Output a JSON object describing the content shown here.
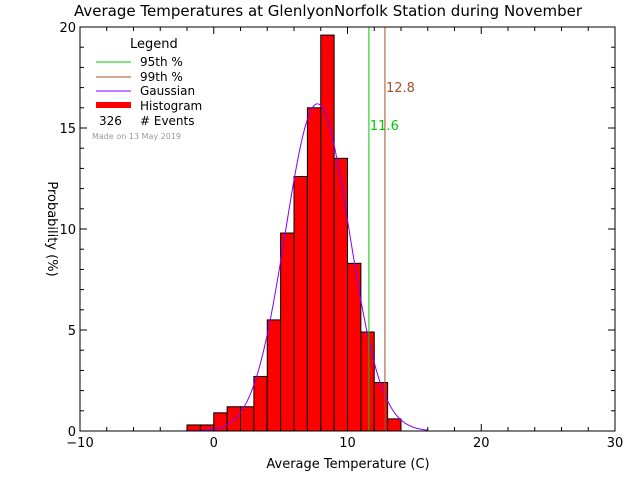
{
  "chart_data": {
    "type": "bar",
    "title": "Average Temperatures at GlenlyonNorfolk Station during November",
    "xlabel": "Average Temperature (C)",
    "ylabel": "Probability (%)",
    "xlim": [
      -10,
      30
    ],
    "ylim": [
      0,
      20
    ],
    "x_ticks": [
      -10,
      0,
      10,
      20,
      30
    ],
    "y_ticks": [
      0,
      5,
      10,
      15,
      20
    ],
    "bin_width": 1,
    "bins": [
      {
        "start": -2,
        "value": 0.3
      },
      {
        "start": -1,
        "value": 0.3
      },
      {
        "start": 0,
        "value": 0.9
      },
      {
        "start": 1,
        "value": 1.2
      },
      {
        "start": 2,
        "value": 1.2
      },
      {
        "start": 3,
        "value": 2.7
      },
      {
        "start": 4,
        "value": 5.5
      },
      {
        "start": 5,
        "value": 9.8
      },
      {
        "start": 6,
        "value": 12.6
      },
      {
        "start": 7,
        "value": 16.0
      },
      {
        "start": 8,
        "value": 19.6
      },
      {
        "start": 9,
        "value": 13.5
      },
      {
        "start": 10,
        "value": 8.3
      },
      {
        "start": 11,
        "value": 4.9
      },
      {
        "start": 12,
        "value": 2.4
      },
      {
        "start": 13,
        "value": 0.6
      }
    ],
    "gaussian": {
      "mean": 7.75,
      "sigma": 2.4,
      "peak": 16.2
    },
    "percentiles": [
      {
        "name": "95th %",
        "value": 11.6,
        "label": "11.6",
        "color": "#00cc00"
      },
      {
        "name": "99th %",
        "value": 12.8,
        "label": "12.8",
        "color": "#a0522d"
      }
    ],
    "legend": {
      "title": "Legend",
      "placement": "top-left",
      "items": [
        {
          "label": "95th %",
          "color": "#00cc00",
          "kind": "line"
        },
        {
          "label": "99th %",
          "color": "#a0522d",
          "kind": "line"
        },
        {
          "label": "Gaussian",
          "color": "#8000ff",
          "kind": "line"
        },
        {
          "label": "Histogram",
          "color": "#ff0000",
          "kind": "thick"
        }
      ],
      "events_count": "326",
      "events_label": "# Events",
      "made_on": "Made on 13 May 2019"
    },
    "colors": {
      "histogram": "#ff0000",
      "gaussian": "#8000ff",
      "axis": "#000000"
    }
  }
}
